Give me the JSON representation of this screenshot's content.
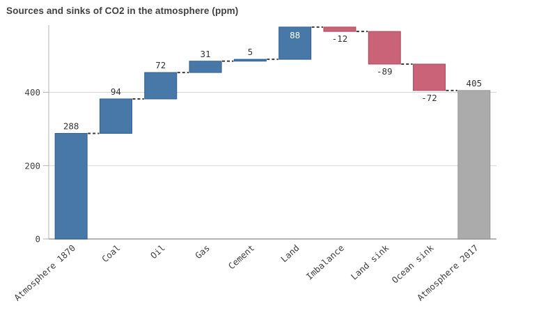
{
  "title": "Sources and sinks of CO2 in the atmosphere (ppm)",
  "colors": {
    "positive_fill": "#4878a7",
    "positive_border": "#2f5f8f",
    "negative_fill": "#ca6378",
    "negative_border": "#a84a60",
    "total_fill": "#ababab",
    "total_border": "#949494",
    "gridline": "#d5d5d5",
    "axis": "#b3b3b3",
    "connector": "#3a3a3a",
    "label_text": "#333333",
    "inside_label_text": "#ffffff",
    "axis_text": "#404040",
    "title_text": "#404040"
  },
  "chart_data": {
    "type": "bar",
    "subtype": "waterfall",
    "title": "Sources and sinks of CO2 in the atmosphere (ppm)",
    "categories": [
      "Atmosphere 1870",
      "Coal",
      "Oil",
      "Gas",
      "Cement",
      "Land",
      "Imbalance",
      "Land sink",
      "Ocean sink",
      "Atmosphere 2017"
    ],
    "values": [
      288,
      94,
      72,
      31,
      5,
      88,
      -12,
      -89,
      -72,
      405
    ],
    "value_labels": [
      "288",
      "94",
      "72",
      "31",
      "5",
      "88",
      "-12",
      "-89",
      "-72",
      "405"
    ],
    "bar_kinds": [
      "increase",
      "increase",
      "increase",
      "increase",
      "increase",
      "increase",
      "decrease",
      "decrease",
      "decrease",
      "total"
    ],
    "cumulative_starts": [
      0,
      288,
      382,
      454,
      485,
      490,
      578,
      566,
      477,
      0
    ],
    "cumulative_ends": [
      288,
      382,
      454,
      485,
      490,
      578,
      566,
      477,
      405,
      405
    ],
    "xlabel": "",
    "ylabel": "",
    "y_ticks": [
      0,
      200,
      400
    ],
    "ylim": [
      0,
      584
    ],
    "grid": true,
    "legend": false,
    "connector_style": "dashed"
  }
}
